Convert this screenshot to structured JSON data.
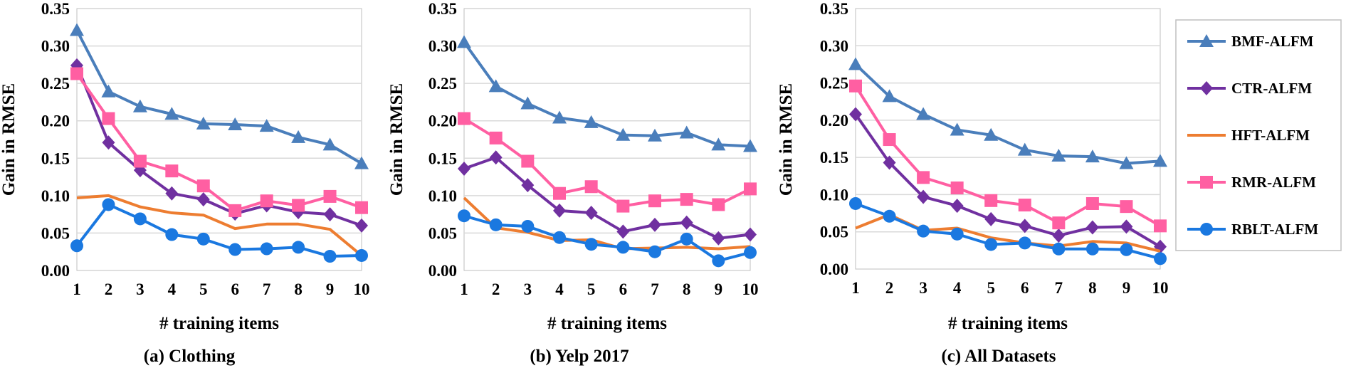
{
  "colors": {
    "BMF-ALFM": "#4A7EBB",
    "CTR-ALFM": "#7030A0",
    "HFT-ALFM": "#ED7D31",
    "RMR-ALFM": "#FF5FA2",
    "RBLT-ALFM": "#1A78E0",
    "grid": "#d9d9d9"
  },
  "legend": {
    "items": [
      {
        "name": "BMF-ALFM",
        "marker": "triangle"
      },
      {
        "name": "CTR-ALFM",
        "marker": "diamond"
      },
      {
        "name": "HFT-ALFM",
        "marker": "none"
      },
      {
        "name": "RMR-ALFM",
        "marker": "square"
      },
      {
        "name": "RBLT-ALFM",
        "marker": "circle"
      }
    ]
  },
  "chart_data": [
    {
      "type": "line",
      "caption": "(a) Clothing",
      "xlabel": "# training items",
      "ylabel": "Gain in RMSE",
      "x": [
        1,
        2,
        3,
        4,
        5,
        6,
        7,
        8,
        9,
        10
      ],
      "ylim": [
        0,
        0.35
      ],
      "yticks": [
        "0.00",
        "0.05",
        "0.10",
        "0.15",
        "0.20",
        "0.25",
        "0.30",
        "0.35"
      ],
      "grid": true,
      "series": [
        {
          "name": "BMF-ALFM",
          "values": [
            0.321,
            0.239,
            0.219,
            0.209,
            0.196,
            0.195,
            0.193,
            0.178,
            0.168,
            0.143
          ]
        },
        {
          "name": "CTR-ALFM",
          "values": [
            0.274,
            0.171,
            0.134,
            0.103,
            0.095,
            0.076,
            0.087,
            0.078,
            0.075,
            0.06
          ]
        },
        {
          "name": "HFT-ALFM",
          "values": [
            0.097,
            0.1,
            0.085,
            0.077,
            0.074,
            0.056,
            0.062,
            0.062,
            0.055,
            0.02
          ]
        },
        {
          "name": "RMR-ALFM",
          "values": [
            0.263,
            0.203,
            0.146,
            0.133,
            0.113,
            0.08,
            0.093,
            0.087,
            0.099,
            0.084
          ]
        },
        {
          "name": "RBLT-ALFM",
          "values": [
            0.033,
            0.088,
            0.069,
            0.048,
            0.042,
            0.028,
            0.029,
            0.031,
            0.019,
            0.02
          ]
        }
      ]
    },
    {
      "type": "line",
      "caption": "(b) Yelp 2017",
      "xlabel": "# training items",
      "ylabel": "Gain in RMSE",
      "x": [
        1,
        2,
        3,
        4,
        5,
        6,
        7,
        8,
        9,
        10
      ],
      "ylim": [
        0,
        0.35
      ],
      "yticks": [
        "0.00",
        "0.05",
        "0.10",
        "0.15",
        "0.20",
        "0.25",
        "0.30",
        "0.35"
      ],
      "grid": true,
      "series": [
        {
          "name": "BMF-ALFM",
          "values": [
            0.305,
            0.246,
            0.223,
            0.204,
            0.198,
            0.181,
            0.18,
            0.184,
            0.168,
            0.166
          ]
        },
        {
          "name": "CTR-ALFM",
          "values": [
            0.136,
            0.151,
            0.114,
            0.08,
            0.077,
            0.052,
            0.061,
            0.064,
            0.043,
            0.048
          ]
        },
        {
          "name": "HFT-ALFM",
          "values": [
            0.097,
            0.057,
            0.051,
            0.04,
            0.041,
            0.029,
            0.03,
            0.031,
            0.029,
            0.032
          ]
        },
        {
          "name": "RMR-ALFM",
          "values": [
            0.203,
            0.177,
            0.146,
            0.103,
            0.112,
            0.086,
            0.093,
            0.095,
            0.088,
            0.109
          ]
        },
        {
          "name": "RBLT-ALFM",
          "values": [
            0.073,
            0.061,
            0.059,
            0.044,
            0.035,
            0.031,
            0.025,
            0.042,
            0.013,
            0.024
          ]
        }
      ]
    },
    {
      "type": "line",
      "caption": "(c) All Datasets",
      "xlabel": "# training items",
      "ylabel": "Gain in RMSE",
      "x": [
        1,
        2,
        3,
        4,
        5,
        6,
        7,
        8,
        9,
        10
      ],
      "ylim": [
        0,
        0.35
      ],
      "yticks": [
        "0.00",
        "0.05",
        "0.10",
        "0.15",
        "0.20",
        "0.25",
        "0.30",
        "0.35"
      ],
      "grid": true,
      "series": [
        {
          "name": "BMF-ALFM",
          "values": [
            0.275,
            0.232,
            0.208,
            0.187,
            0.18,
            0.16,
            0.152,
            0.151,
            0.142,
            0.145
          ]
        },
        {
          "name": "CTR-ALFM",
          "values": [
            0.208,
            0.143,
            0.097,
            0.085,
            0.067,
            0.058,
            0.045,
            0.056,
            0.057,
            0.03
          ]
        },
        {
          "name": "HFT-ALFM",
          "values": [
            0.055,
            0.073,
            0.052,
            0.055,
            0.042,
            0.035,
            0.031,
            0.037,
            0.035,
            0.024
          ]
        },
        {
          "name": "RMR-ALFM",
          "values": [
            0.246,
            0.174,
            0.123,
            0.109,
            0.092,
            0.086,
            0.062,
            0.088,
            0.084,
            0.058
          ]
        },
        {
          "name": "RBLT-ALFM",
          "values": [
            0.088,
            0.071,
            0.051,
            0.047,
            0.033,
            0.035,
            0.027,
            0.027,
            0.026,
            0.014
          ]
        }
      ]
    }
  ]
}
